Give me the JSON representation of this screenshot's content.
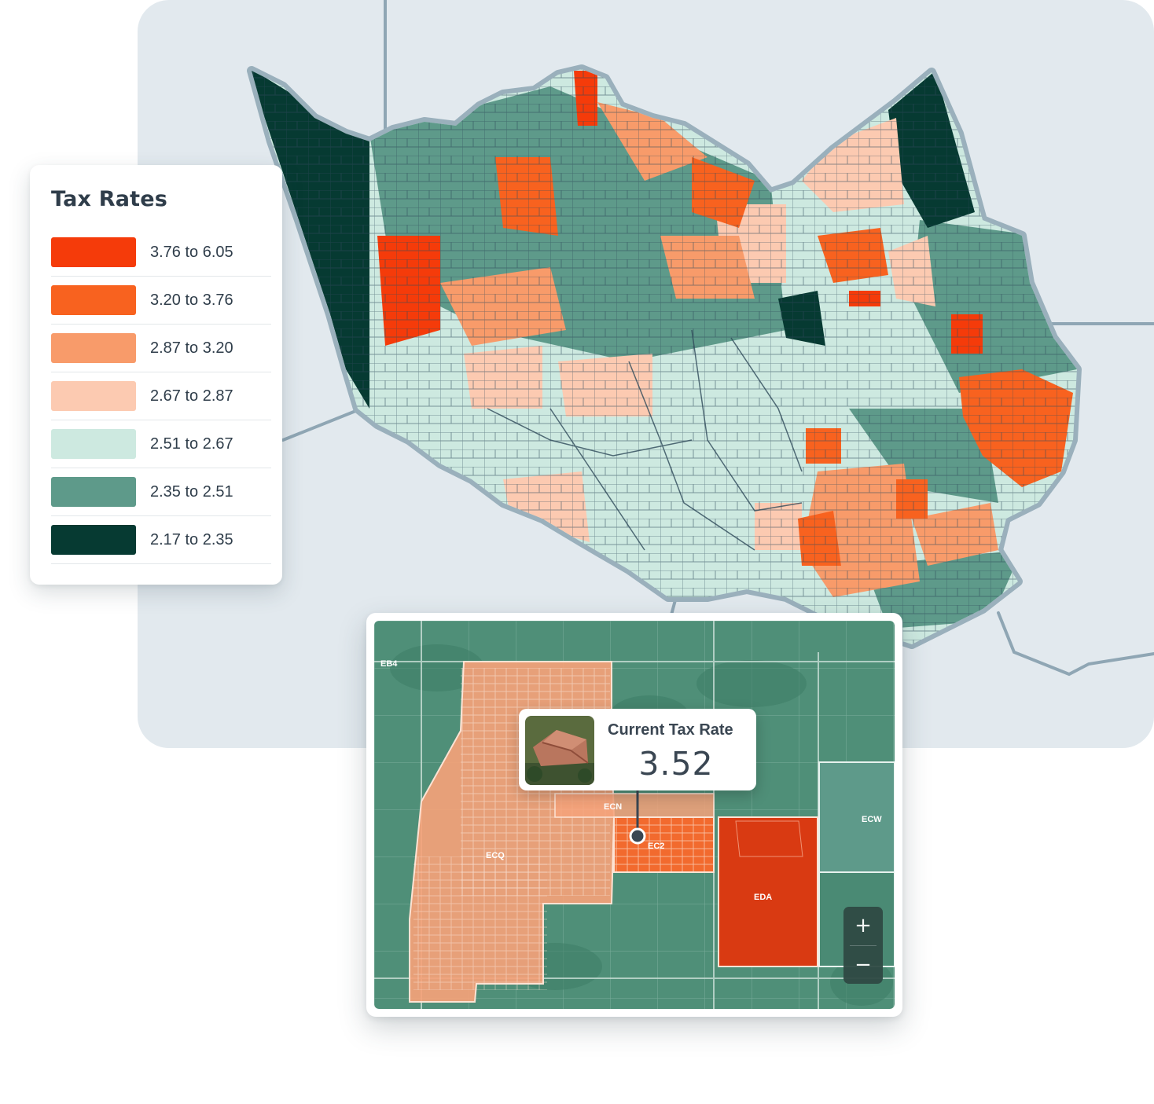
{
  "legend": {
    "title": "Tax Rates",
    "items": [
      {
        "range": "3.76 to 6.05",
        "color": "#f53b0a"
      },
      {
        "range": "3.20 to 3.76",
        "color": "#f8621f"
      },
      {
        "range": "2.87 to 3.20",
        "color": "#f89b6a"
      },
      {
        "range": "2.67 to 2.87",
        "color": "#fccab1"
      },
      {
        "range": "2.51 to 2.67",
        "color": "#cde9e0"
      },
      {
        "range": "2.35 to 2.51",
        "color": "#5e9a8a"
      },
      {
        "range": "2.17 to 2.35",
        "color": "#063a32"
      }
    ]
  },
  "detail_map": {
    "parcel_labels": [
      "EB4",
      "ECQ",
      "ECN",
      "EC2",
      "ECW",
      "EDA"
    ],
    "tooltip": {
      "label": "Current Tax Rate",
      "value": "3.52"
    },
    "zoom": {
      "in_label": "+",
      "out_label": "−"
    }
  },
  "colors": {
    "map_background": "#e2e9ee",
    "road": "#8fa6b4",
    "parcel_border": "#2f4a5a"
  }
}
